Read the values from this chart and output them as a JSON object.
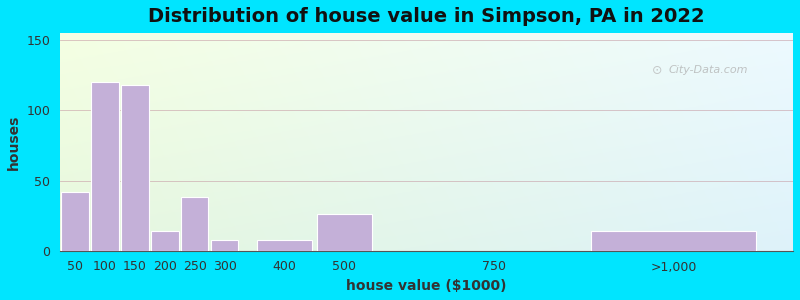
{
  "title": "Distribution of house value in Simpson, PA in 2022",
  "xlabel": "house value ($1000)",
  "ylabel": "houses",
  "bar_color": "#c4b0d8",
  "bar_edgecolor": "#ffffff",
  "categories": [
    "50",
    "100",
    "150",
    "200",
    "250",
    "300",
    "400",
    "500",
    "750",
    ">1,000"
  ],
  "x_positions": [
    50,
    100,
    150,
    200,
    250,
    300,
    400,
    500,
    750,
    1050
  ],
  "bar_widths": [
    50,
    50,
    50,
    50,
    50,
    50,
    100,
    100,
    250,
    300
  ],
  "values": [
    42,
    120,
    118,
    14,
    38,
    8,
    8,
    26,
    0,
    14
  ],
  "ylim": [
    0,
    155
  ],
  "yticks": [
    0,
    50,
    100,
    150
  ],
  "xtick_positions": [
    50,
    100,
    150,
    200,
    250,
    300,
    400,
    500,
    750,
    1050
  ],
  "xtick_labels": [
    "50",
    "100",
    "150",
    "200",
    "250",
    "300",
    "400",
    "500",
    "750",
    ">1,000"
  ],
  "xlim": [
    25,
    1250
  ],
  "bg_outer": "#00e5ff",
  "watermark": "City-Data.com",
  "title_fontsize": 14,
  "axis_label_fontsize": 10
}
